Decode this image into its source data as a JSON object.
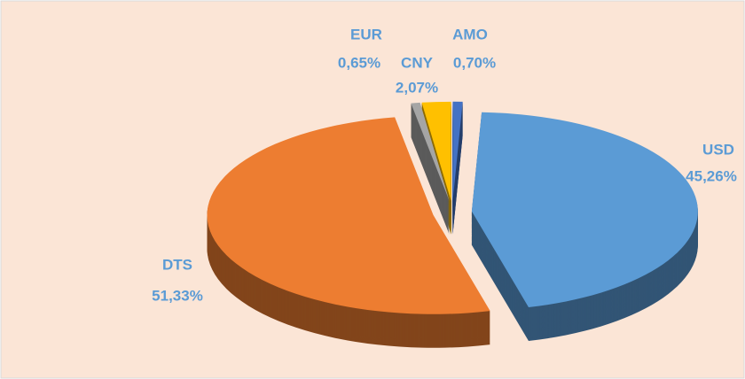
{
  "chart_data": {
    "type": "pie",
    "categories": [
      "AMO",
      "USD",
      "DTS",
      "EUR",
      "CNY"
    ],
    "values": [
      0.7,
      45.26,
      51.33,
      0.65,
      2.07
    ],
    "value_labels": [
      "0,70%",
      "45,26%",
      "51,33%",
      "0,65%",
      "2,07%"
    ],
    "colors": [
      "#4472c4",
      "#5b9bd5",
      "#ed7d31",
      "#a5a5a5",
      "#ffc000"
    ]
  }
}
